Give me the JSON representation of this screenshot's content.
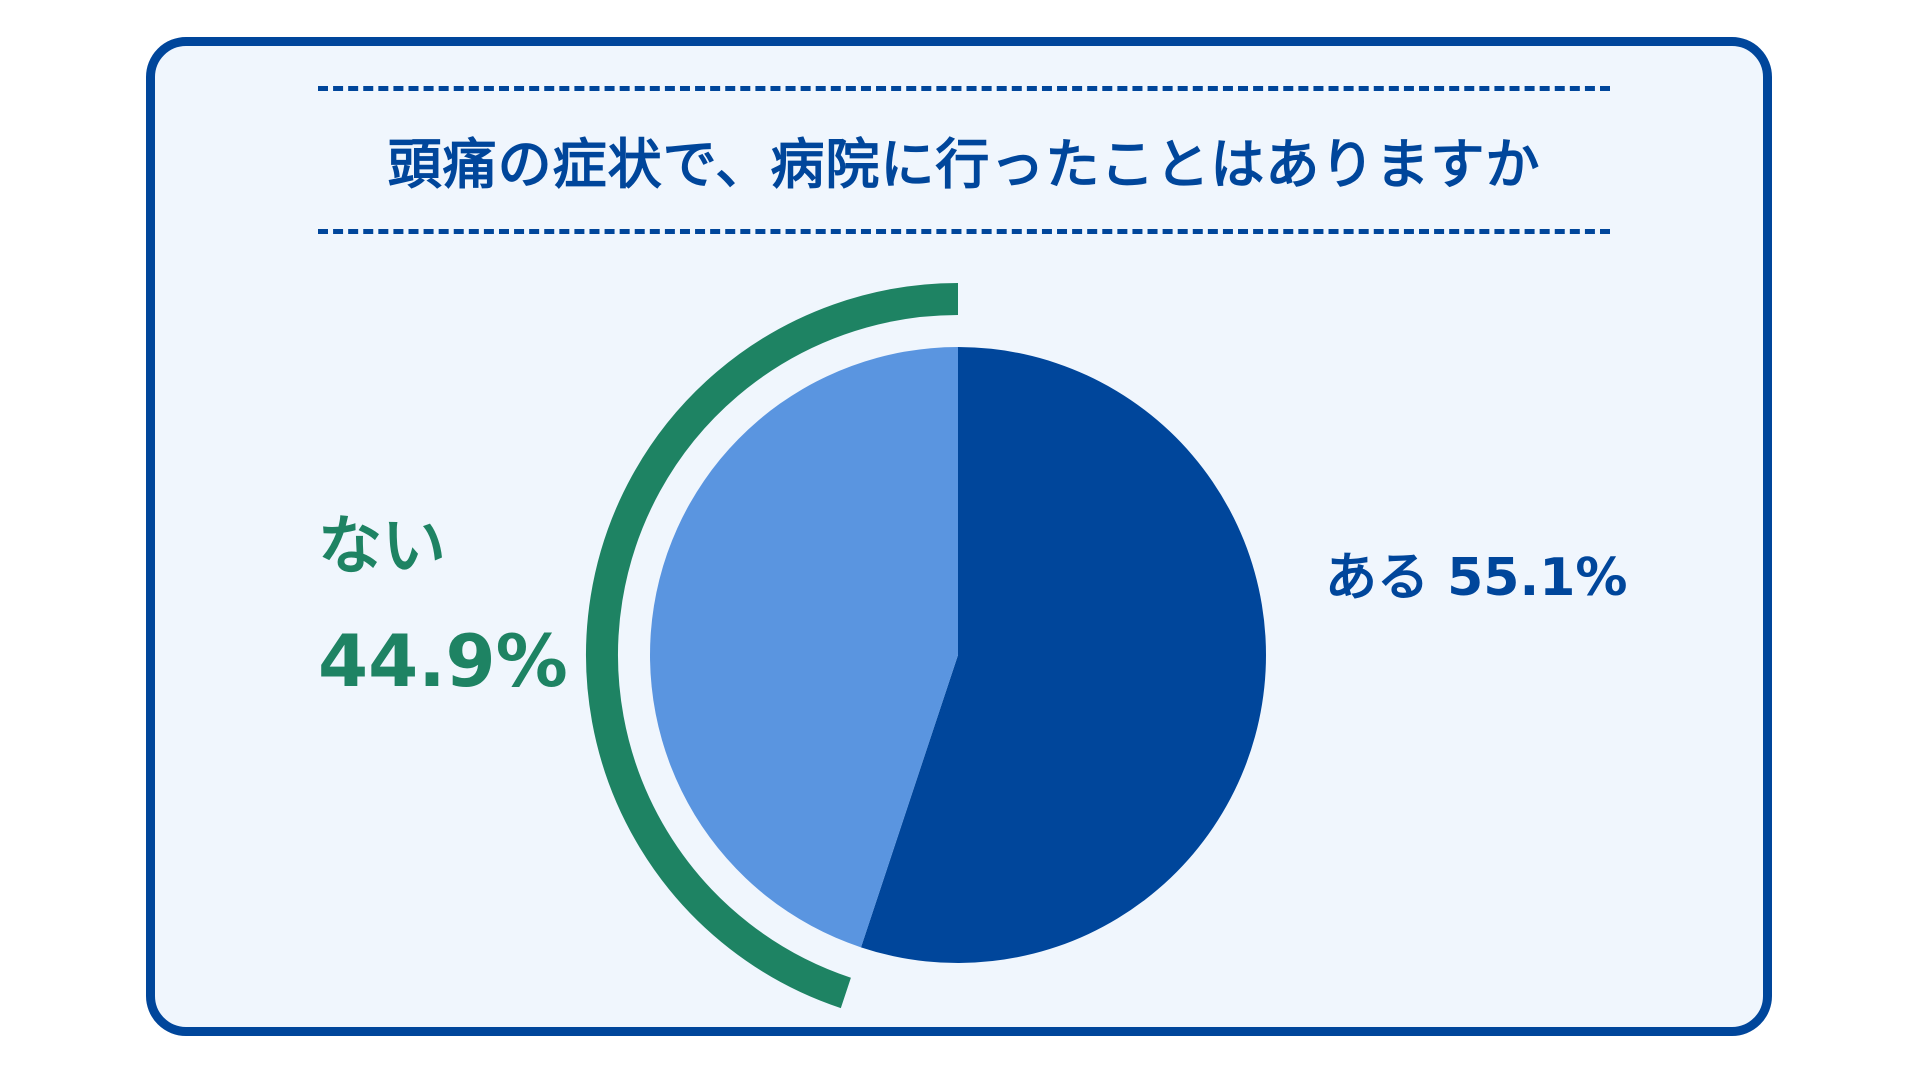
{
  "chart_data": {
    "type": "pie",
    "title": "頭痛の症状で、病院に行ったことはありますか",
    "slices": [
      {
        "label": "ある",
        "value": 55.1,
        "display": "55.1%",
        "color": "#00469b"
      },
      {
        "label": "ない",
        "value": 44.9,
        "display": "44.9%",
        "color": "#5a95e0",
        "highlight_color": "#1e8363"
      }
    ],
    "start": "top",
    "direction": "clockwise",
    "highlighted_slice": "ない"
  },
  "colors": {
    "border": "#00469b",
    "background": "#f0f6fd",
    "accent_green": "#1e8363"
  }
}
